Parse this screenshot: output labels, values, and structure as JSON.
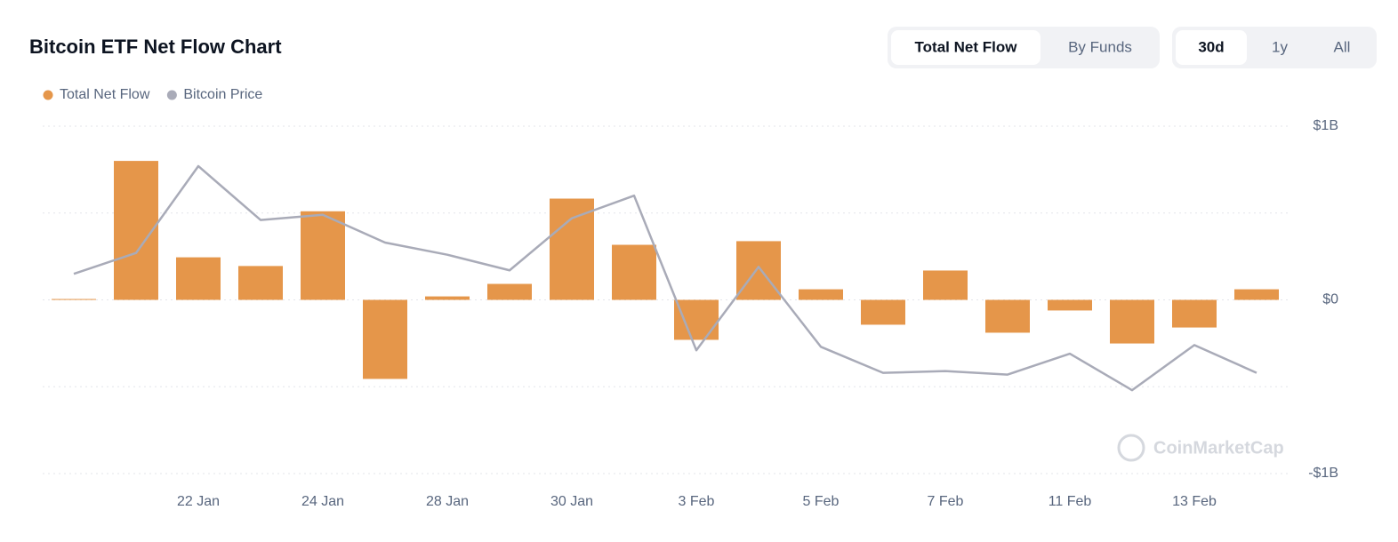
{
  "header": {
    "title": "Bitcoin ETF Net Flow Chart",
    "view_tabs": [
      "Total Net Flow",
      "By Funds"
    ],
    "active_view": 0,
    "range_tabs": [
      "30d",
      "1y",
      "All"
    ],
    "active_range": 0
  },
  "watermark": "CoinMarketCap",
  "chart_data": {
    "type": "bar",
    "categories": [
      null,
      null,
      "22 Jan",
      null,
      "24 Jan",
      null,
      "28 Jan",
      null,
      "30 Jan",
      null,
      "3 Feb",
      null,
      "5 Feb",
      null,
      "7 Feb",
      null,
      "11 Feb",
      null,
      "13 Feb",
      null
    ],
    "series": [
      {
        "name": "Total Net Flow",
        "type": "bar",
        "color": "#e5964a",
        "values": [
          5000000,
          800000000,
          245000000,
          195000000,
          510000000,
          -455000000,
          20000000,
          92000000,
          583000000,
          317000000,
          -230000000,
          338000000,
          61000000,
          -143000000,
          169000000,
          -189000000,
          -61000000,
          -251000000,
          -159000000,
          61000000
        ]
      },
      {
        "name": "Bitcoin Price",
        "type": "line",
        "axis": "y2",
        "color": "#a9abb8",
        "values": [
          101500,
          102700,
          107700,
          104600,
          104900,
          103300,
          102600,
          101700,
          104700,
          106000,
          97100,
          101900,
          97300,
          95800,
          95900,
          95700,
          96900,
          94800,
          97400,
          95800
        ]
      }
    ],
    "ylim": [
      -1000000000,
      1000000000
    ],
    "yticks": [
      {
        "value": -1000000000,
        "label": "-$1B"
      },
      {
        "value": 0,
        "label": "$0"
      },
      {
        "value": 1000000000,
        "label": "$1B"
      }
    ],
    "grid_lines": [
      -1000000000,
      -500000000,
      0,
      500000000,
      1000000000
    ],
    "y2lim": [
      90000,
      110000
    ],
    "legend": "top-left"
  }
}
